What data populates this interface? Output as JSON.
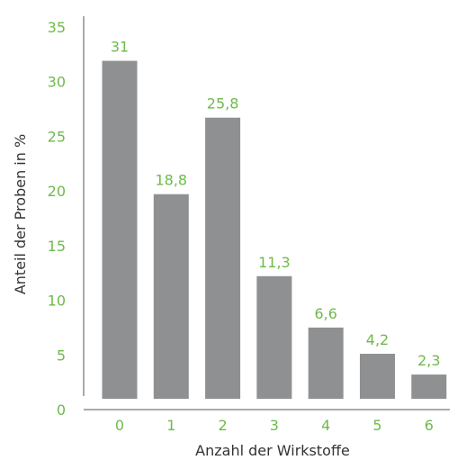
{
  "chart_data": {
    "type": "bar",
    "categories": [
      "0",
      "1",
      "2",
      "3",
      "4",
      "5",
      "6"
    ],
    "values": [
      31,
      18.8,
      25.8,
      11.3,
      6.6,
      4.2,
      2.3
    ],
    "data_labels": [
      "31",
      "18,8",
      "25,8",
      "11,3",
      "6,6",
      "4,2",
      "2,3"
    ],
    "xlabel": "Anzahl der Wirkstoffe",
    "ylabel": "Anteil der Proben in %",
    "ylim": [
      0,
      35
    ],
    "yticks": [
      "0",
      "5",
      "10",
      "15",
      "20",
      "25",
      "30",
      "35"
    ],
    "grid": false,
    "legend": false
  },
  "colors": {
    "bar": "#8f9091",
    "accent_text": "#6dbb4a",
    "axis_line": "#555555",
    "axis_title": "#333333"
  }
}
